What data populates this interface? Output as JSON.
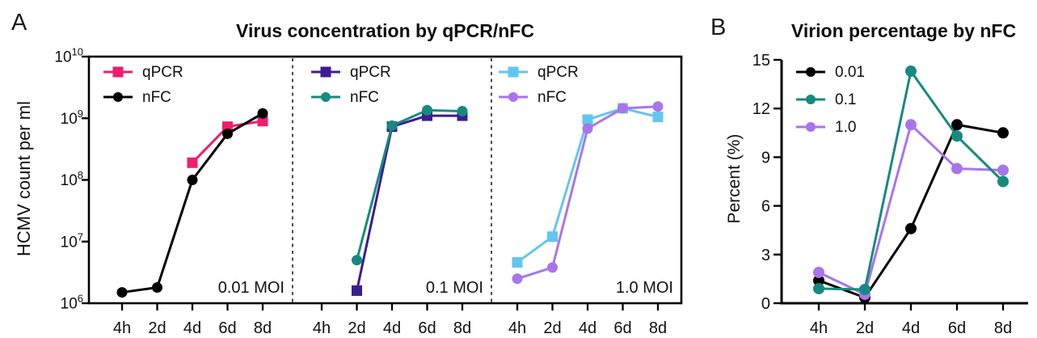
{
  "panels": {
    "a_letter": "A",
    "b_letter": "B"
  },
  "chart_data": [
    {
      "id": "panel-a",
      "type": "line",
      "title": "Virus concentration by qPCR/nFC",
      "xlabel": "",
      "ylabel": "HCMV count per ml",
      "x_categories": [
        "4h",
        "2d",
        "4d",
        "6d",
        "8d"
      ],
      "y_scale": "log10",
      "ylim": [
        1000000.0,
        10000000000.0
      ],
      "y_tick_exponents": [
        6,
        7,
        8,
        9,
        10
      ],
      "grid": false,
      "legend_position": "inside-top-left-of-each-subpanel",
      "frame": "full-box-with-dashed-separators",
      "subpanels": [
        {
          "annotation": "0.01 MOI",
          "series": [
            {
              "name": "qPCR",
              "color": "#EE1D70",
              "marker": "square",
              "values": [
                null,
                null,
                190000000.0,
                730000000.0,
                900000000.0
              ]
            },
            {
              "name": "nFC",
              "color": "#000000",
              "marker": "circle",
              "values": [
                1500000.0,
                1800000.0,
                100000000.0,
                560000000.0,
                1200000000.0
              ]
            }
          ]
        },
        {
          "annotation": "0.1 MOI",
          "series": [
            {
              "name": "qPCR",
              "color": "#3D1C91",
              "marker": "square",
              "values": [
                null,
                1600000.0,
                730000000.0,
                1100000000.0,
                1100000000.0
              ]
            },
            {
              "name": "nFC",
              "color": "#178A80",
              "marker": "circle",
              "values": [
                null,
                5000000.0,
                760000000.0,
                1350000000.0,
                1300000000.0
              ]
            }
          ]
        },
        {
          "annotation": "1.0 MOI",
          "series": [
            {
              "name": "qPCR",
              "color": "#62C6F2",
              "marker": "square",
              "values": [
                4600000.0,
                12000000.0,
                950000000.0,
                1450000000.0,
                1050000000.0
              ]
            },
            {
              "name": "nFC",
              "color": "#A975EB",
              "marker": "circle",
              "values": [
                2500000.0,
                3800000.0,
                680000000.0,
                1450000000.0,
                1550000000.0
              ]
            }
          ]
        }
      ]
    },
    {
      "id": "panel-b",
      "type": "line",
      "title": "Virion percentage by nFC",
      "xlabel": "",
      "ylabel": "Percent (%)",
      "x_categories": [
        "4h",
        "2d",
        "4d",
        "6d",
        "8d"
      ],
      "y_scale": "linear",
      "ylim": [
        0,
        15
      ],
      "y_ticks": [
        0,
        3,
        6,
        9,
        12,
        15
      ],
      "grid": false,
      "legend_position": "inside-top-left",
      "frame": "left-bottom-axes-only",
      "series": [
        {
          "name": "0.01",
          "color": "#000000",
          "marker": "circle",
          "values": [
            1.4,
            0.35,
            4.6,
            11.0,
            10.5
          ]
        },
        {
          "name": "0.1",
          "color": "#178A80",
          "marker": "circle",
          "values": [
            0.9,
            0.85,
            14.3,
            10.3,
            7.5
          ]
        },
        {
          "name": "1.0",
          "color": "#A975EB",
          "marker": "circle",
          "values": [
            1.9,
            0.55,
            11.0,
            8.3,
            8.2
          ]
        }
      ]
    }
  ]
}
